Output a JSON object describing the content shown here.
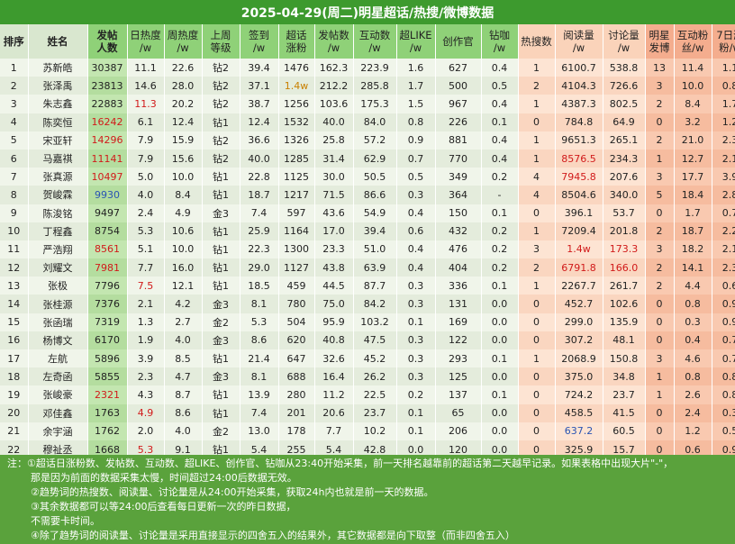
{
  "title": "2025-04-29(周二)明星超话/热搜/微博数据",
  "headers": [
    {
      "l1": "排序",
      "l2": ""
    },
    {
      "l1": "姓名",
      "l2": ""
    },
    {
      "l1": "发帖",
      "l2": "人数"
    },
    {
      "l1": "日热度",
      "l2": "/w"
    },
    {
      "l1": "周热度",
      "l2": "/w"
    },
    {
      "l1": "上周",
      "l2": "等级"
    },
    {
      "l1": "签到",
      "l2": "/w"
    },
    {
      "l1": "超话",
      "l2": "涨粉"
    },
    {
      "l1": "发帖数",
      "l2": "/w"
    },
    {
      "l1": "互动数",
      "l2": "/w"
    },
    {
      "l1": "超LIKE",
      "l2": "/w"
    },
    {
      "l1": "创作官",
      "l2": ""
    },
    {
      "l1": "钻咖",
      "l2": "/w"
    },
    {
      "l1": "热搜数",
      "l2": ""
    },
    {
      "l1": "阅读量",
      "l2": "/w"
    },
    {
      "l1": "讨论量",
      "l2": "/w"
    },
    {
      "l1": "明星",
      "l2": "发博"
    },
    {
      "l1": "互动粉",
      "l2": "丝/w"
    },
    {
      "l1": "7日涨",
      "l2": "粉/w"
    }
  ],
  "rows": [
    [
      "1",
      "苏新皓",
      "30387",
      "11.1",
      "22.6",
      "钻2",
      "39.4",
      "1476",
      "162.3",
      "223.9",
      "1.6",
      "627",
      "0.4",
      "1",
      "6100.7",
      "538.8",
      "13",
      "11.4",
      "1.1"
    ],
    [
      "2",
      "张泽禹",
      "23813",
      "14.6",
      "28.0",
      "钻2",
      "37.1",
      "1.4w",
      "212.2",
      "285.8",
      "1.7",
      "500",
      "0.5",
      "2",
      "4104.3",
      "726.6",
      "3",
      "10.0",
      "0.8"
    ],
    [
      "3",
      "朱志鑫",
      "22883",
      "11.3",
      "20.2",
      "钻2",
      "38.7",
      "1256",
      "103.6",
      "175.3",
      "1.5",
      "967",
      "0.4",
      "1",
      "4387.3",
      "802.5",
      "2",
      "8.4",
      "1.7"
    ],
    [
      "4",
      "陈奕恒",
      "16242",
      "6.1",
      "12.4",
      "钻1",
      "12.4",
      "1532",
      "40.0",
      "84.0",
      "0.8",
      "226",
      "0.1",
      "0",
      "784.8",
      "64.9",
      "0",
      "3.2",
      "1.2"
    ],
    [
      "5",
      "宋亚轩",
      "14296",
      "7.9",
      "15.9",
      "钻2",
      "36.6",
      "1326",
      "25.8",
      "57.2",
      "0.9",
      "881",
      "0.4",
      "1",
      "9651.3",
      "265.1",
      "2",
      "21.0",
      "2.3"
    ],
    [
      "6",
      "马嘉祺",
      "11141",
      "7.9",
      "15.6",
      "钻2",
      "40.0",
      "1285",
      "31.4",
      "62.9",
      "0.7",
      "770",
      "0.4",
      "1",
      "8576.5",
      "234.3",
      "1",
      "12.7",
      "2.1"
    ],
    [
      "7",
      "张真源",
      "10497",
      "5.0",
      "10.0",
      "钻1",
      "22.8",
      "1125",
      "30.0",
      "50.5",
      "0.5",
      "349",
      "0.2",
      "4",
      "7945.8",
      "207.6",
      "3",
      "17.7",
      "3.9"
    ],
    [
      "8",
      "贺峻霖",
      "9930",
      "4.0",
      "8.4",
      "钻1",
      "18.7",
      "1217",
      "71.5",
      "86.6",
      "0.3",
      "364",
      "-",
      "4",
      "8504.6",
      "340.0",
      "5",
      "18.4",
      "2.8"
    ],
    [
      "9",
      "陈浚铭",
      "9497",
      "2.4",
      "4.9",
      "金3",
      "7.4",
      "597",
      "43.6",
      "54.9",
      "0.4",
      "150",
      "0.1",
      "0",
      "396.1",
      "53.7",
      "0",
      "1.7",
      "0.7"
    ],
    [
      "10",
      "丁程鑫",
      "8754",
      "5.3",
      "10.6",
      "钻1",
      "25.9",
      "1164",
      "17.0",
      "39.4",
      "0.6",
      "432",
      "0.2",
      "1",
      "7209.4",
      "201.8",
      "2",
      "18.7",
      "2.2"
    ],
    [
      "11",
      "严浩翔",
      "8561",
      "5.1",
      "10.0",
      "钻1",
      "22.3",
      "1300",
      "23.3",
      "51.0",
      "0.4",
      "476",
      "0.2",
      "3",
      "1.4w",
      "173.3",
      "3",
      "18.2",
      "2.1"
    ],
    [
      "12",
      "刘耀文",
      "7981",
      "7.7",
      "16.0",
      "钻1",
      "29.0",
      "1127",
      "43.8",
      "63.9",
      "0.4",
      "404",
      "0.2",
      "2",
      "6791.8",
      "166.0",
      "2",
      "14.1",
      "2.3"
    ],
    [
      "13",
      "张极",
      "7796",
      "7.5",
      "12.1",
      "钻1",
      "18.5",
      "459",
      "44.5",
      "87.7",
      "0.3",
      "336",
      "0.1",
      "1",
      "2267.7",
      "261.7",
      "2",
      "4.4",
      "0.6"
    ],
    [
      "14",
      "张桂源",
      "7376",
      "2.1",
      "4.2",
      "金3",
      "8.1",
      "780",
      "75.0",
      "84.2",
      "0.3",
      "131",
      "0.0",
      "0",
      "452.7",
      "102.6",
      "0",
      "0.8",
      "0.9"
    ],
    [
      "15",
      "张函瑞",
      "7319",
      "1.3",
      "2.7",
      "金2",
      "5.3",
      "504",
      "95.9",
      "103.2",
      "0.1",
      "169",
      "0.0",
      "0",
      "299.0",
      "135.9",
      "0",
      "0.3",
      "0.9"
    ],
    [
      "16",
      "杨博文",
      "6170",
      "1.9",
      "4.0",
      "金3",
      "8.6",
      "620",
      "40.8",
      "47.5",
      "0.3",
      "122",
      "0.0",
      "0",
      "307.2",
      "48.1",
      "0",
      "0.4",
      "0.7"
    ],
    [
      "17",
      "左航",
      "5896",
      "3.9",
      "8.5",
      "钻1",
      "21.4",
      "647",
      "32.6",
      "45.2",
      "0.3",
      "293",
      "0.1",
      "1",
      "2068.9",
      "150.8",
      "3",
      "4.6",
      "0.7"
    ],
    [
      "18",
      "左奇函",
      "5855",
      "2.3",
      "4.7",
      "金3",
      "8.1",
      "688",
      "16.4",
      "26.2",
      "0.3",
      "125",
      "0.0",
      "0",
      "375.0",
      "34.8",
      "1",
      "0.8",
      "0.8"
    ],
    [
      "19",
      "张峻豪",
      "2321",
      "4.3",
      "8.7",
      "钻1",
      "13.9",
      "280",
      "11.2",
      "22.5",
      "0.2",
      "137",
      "0.1",
      "0",
      "724.2",
      "23.7",
      "1",
      "2.6",
      "0.8"
    ],
    [
      "20",
      "邓佳鑫",
      "1763",
      "4.9",
      "8.6",
      "钻1",
      "7.4",
      "201",
      "20.6",
      "23.7",
      "0.1",
      "65",
      "0.0",
      "0",
      "458.5",
      "41.5",
      "0",
      "2.4",
      "0.3"
    ],
    [
      "21",
      "余宇涵",
      "1762",
      "2.0",
      "4.0",
      "金2",
      "13.0",
      "178",
      "7.7",
      "10.2",
      "0.1",
      "206",
      "0.0",
      "0",
      "637.2",
      "60.5",
      "0",
      "1.2",
      "0.5"
    ],
    [
      "22",
      "穆祉丞",
      "1668",
      "5.3",
      "9.1",
      "钻1",
      "5.4",
      "255",
      "5.4",
      "42.8",
      "0.0",
      "120",
      "0.0",
      "0",
      "325.9",
      "15.7",
      "0",
      "0.6",
      "0.9"
    ]
  ],
  "notes": {
    "prefix": "注：",
    "n1a": "①超话日涨粉数、发帖数、互动数、超LIKE、创作官、钻咖从23:40开始采集，前一天排名越靠前的超话第二天越早记录。如果表格中出现大片\"-\"，",
    "n1b": "那是因为前面的数据采集太慢，时间超过24:00后数据无效。",
    "n2": "②趋势词的热搜数、阅读量、讨论量是从24:00开始采集，获取24h内也就是前一天的数据。",
    "n3a": "③其余数据都可以等24:00后查看每日更新一次的昨日数据，",
    "n3b": "不需要卡时间。",
    "n4": "④除了趋势词的阅读量、讨论量是采用直接显示的四舍五入的结果外，其它数据都是向下取整（而非四舍五入）"
  },
  "colors": {
    "title_bg": "#3d9a2e",
    "notes_bg": "#5aa23c",
    "red_text": "#d11a1a",
    "orange_text": "#c98000",
    "blue_text": "#2a54b3"
  }
}
